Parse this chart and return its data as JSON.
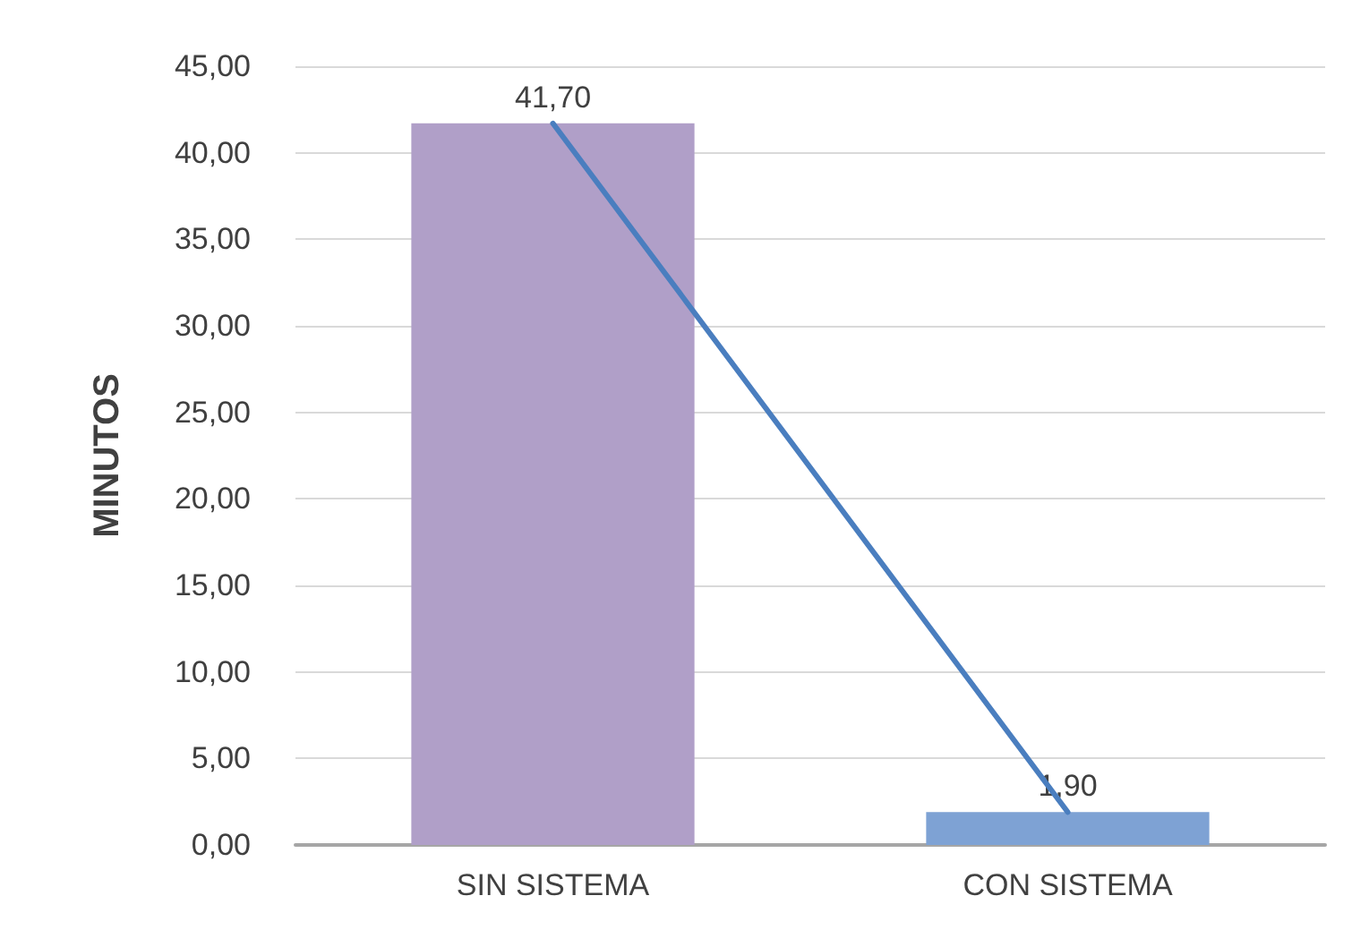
{
  "chart_data": {
    "type": "bar",
    "ylabel": "MINUTOS",
    "categories": [
      "SIN SISTEMA",
      "CON SISTEMA"
    ],
    "series": [
      {
        "colors": [
          "#b09fc8",
          "#7ea2d4"
        ],
        "values": [
          41.7,
          1.9
        ],
        "value_labels": [
          "41,70",
          "1,90"
        ]
      },
      {
        "type": "line",
        "color": "#4a7ebf",
        "values": [
          41.7,
          1.9
        ]
      }
    ],
    "ylim": [
      0,
      45
    ],
    "yticks": [
      {
        "value": 0,
        "label": "0,00"
      },
      {
        "value": 5,
        "label": "5,00"
      },
      {
        "value": 10,
        "label": "10,00"
      },
      {
        "value": 15,
        "label": "15,00"
      },
      {
        "value": 20,
        "label": "20,00"
      },
      {
        "value": 25,
        "label": "25,00"
      },
      {
        "value": 30,
        "label": "30,00"
      },
      {
        "value": 35,
        "label": "35,00"
      },
      {
        "value": 40,
        "label": "40,00"
      },
      {
        "value": 45,
        "label": "45,00"
      }
    ],
    "grid": "y",
    "marker": "none",
    "line_style": "solid"
  }
}
